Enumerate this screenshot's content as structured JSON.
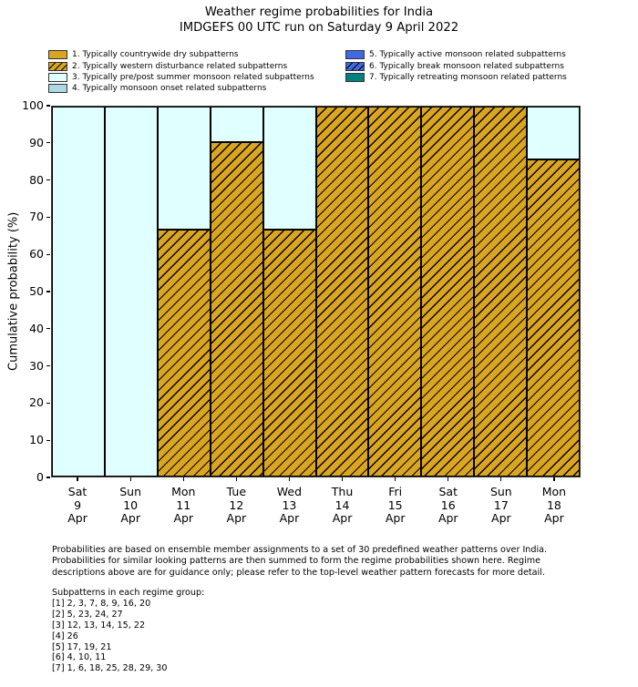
{
  "title": {
    "line1": "Weather regime probabilities for India",
    "line2": "IMDGEFS 00 UTC run on Saturday 9 April 2022"
  },
  "colors": {
    "regime_dry_orange": "#DAA520",
    "regime_premonsoon_cyan": "#E0FFFF",
    "regime_onset_lightblue": "#ADD8E6",
    "regime_active_royalblue": "#4169E1",
    "regime_retreating_teal": "#008080",
    "edge_black": "#000000"
  },
  "legend": {
    "items": [
      {
        "label": "1. Typically countrywide dry subpatterns",
        "color": "#DAA520",
        "hatch": false
      },
      {
        "label": "2. Typically western disturbance related subpatterns",
        "color": "#DAA520",
        "hatch": true
      },
      {
        "label": "3. Typically pre/post summer monsoon related subpatterns",
        "color": "#E0FFFF",
        "hatch": false
      },
      {
        "label": "4. Typically monsoon onset related subpatterns",
        "color": "#ADD8E6",
        "hatch": false
      },
      {
        "label": "5. Typically active monsoon related subpatterns",
        "color": "#4169E1",
        "hatch": false
      },
      {
        "label": "6. Typically break monsoon related subpatterns",
        "color": "#4169E1",
        "hatch": true
      },
      {
        "label": "7. Typically retreating monsoon related patterns",
        "color": "#008080",
        "hatch": false
      }
    ]
  },
  "chart_data": {
    "type": "bar",
    "stacked": true,
    "grid": false,
    "legend_position": "top, two columns, outside axes",
    "title": "Weather regime probabilities for India — IMDGEFS 00 UTC run on Saturday 9 April 2022",
    "xlabel": "",
    "ylabel": "Cumulative probability (%)",
    "ylim": [
      0,
      100
    ],
    "yticks": [
      0,
      10,
      20,
      30,
      40,
      50,
      60,
      70,
      80,
      90,
      100
    ],
    "categories": [
      {
        "dow": "Sat",
        "day": "9",
        "mon": "Apr"
      },
      {
        "dow": "Sun",
        "day": "10",
        "mon": "Apr"
      },
      {
        "dow": "Mon",
        "day": "11",
        "mon": "Apr"
      },
      {
        "dow": "Tue",
        "day": "12",
        "mon": "Apr"
      },
      {
        "dow": "Wed",
        "day": "13",
        "mon": "Apr"
      },
      {
        "dow": "Thu",
        "day": "14",
        "mon": "Apr"
      },
      {
        "dow": "Fri",
        "day": "15",
        "mon": "Apr"
      },
      {
        "dow": "Sat",
        "day": "16",
        "mon": "Apr"
      },
      {
        "dow": "Sun",
        "day": "17",
        "mon": "Apr"
      },
      {
        "dow": "Mon",
        "day": "18",
        "mon": "Apr"
      }
    ],
    "series": [
      {
        "name": "2. Typically western disturbance related subpatterns",
        "color": "#DAA520",
        "hatch": true,
        "values": [
          0,
          0,
          66.7,
          90.5,
          66.7,
          100,
          100,
          100,
          100,
          85.7
        ]
      },
      {
        "name": "3. Typically pre/post summer monsoon related subpatterns",
        "color": "#E0FFFF",
        "hatch": false,
        "values": [
          100,
          100,
          33.3,
          9.5,
          33.3,
          0,
          0,
          0,
          0,
          14.3
        ]
      }
    ]
  },
  "footer": {
    "lines": [
      "Probabilities are based on ensemble member assignments to a set of 30 predefined weather patterns over India.",
      "Probabilities for similar looking patterns are then summed to form the regime probabilities shown here. Regime",
      "descriptions above are for guidance only; please refer to the top-level weather pattern forecasts for more detail."
    ]
  },
  "subpatterns": {
    "header": "Subpatterns in each regime group:",
    "lines": [
      "[1] 2, 3, 7, 8, 9, 16, 20",
      "[2] 5, 23, 24, 27",
      "[3] 12, 13, 14, 15, 22",
      "[4] 26",
      "[5] 17, 19, 21",
      "[6] 4, 10, 11",
      "[7] 1, 6, 18, 25, 28, 29, 30"
    ]
  }
}
